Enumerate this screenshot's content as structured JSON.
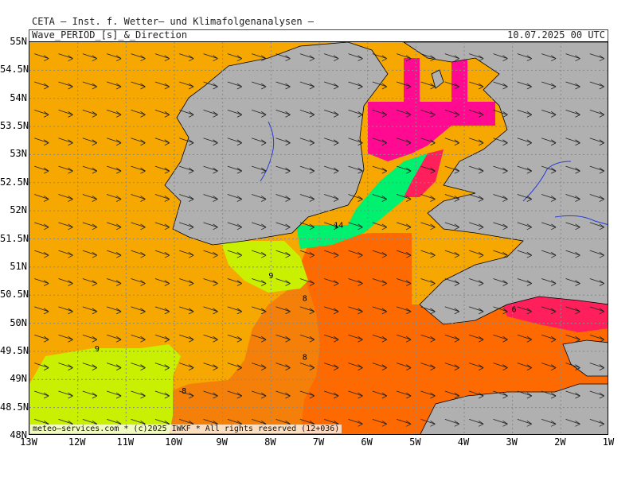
{
  "header": {
    "organization": "CETA – Inst. f. Wetter– und Klimafolgenanalysen –",
    "field": "Wave_PERIOD_[s]_&_Direction",
    "valid_time": "10.07.2025 00 UTC"
  },
  "axes": {
    "lat_labels": [
      "55N",
      "54.5N",
      "54N",
      "53.5N",
      "53N",
      "52.5N",
      "52N",
      "51.5N",
      "51N",
      "50.5N",
      "50N",
      "49.5N",
      "49N",
      "48.5N",
      "48N"
    ],
    "lon_labels": [
      "13W",
      "12W",
      "11W",
      "10W",
      "9W",
      "8W",
      "7W",
      "6W",
      "5W",
      "4W",
      "3W",
      "2W",
      "1W"
    ]
  },
  "contour_labels": [
    {
      "text": "9",
      "lon": -11.6,
      "lat": 49.5
    },
    {
      "text": "9",
      "lon": -8.0,
      "lat": 50.8
    },
    {
      "text": "8",
      "lon": -7.3,
      "lat": 50.4
    },
    {
      "text": "8",
      "lon": -7.3,
      "lat": 49.35
    },
    {
      "text": "8",
      "lon": -9.8,
      "lat": 48.75
    },
    {
      "text": "14",
      "lon": -6.6,
      "lat": 51.7
    },
    {
      "text": "6",
      "lon": -2.97,
      "lat": 50.2
    }
  ],
  "colors": {
    "land": "#b0b0b0",
    "period_10": "#f7a800",
    "period_9": "#c8f000",
    "period_8": "#f4800a",
    "period_7": "#ff6a00",
    "period_5_6": "#ff1f5a",
    "period_3_4": "#ff0a90",
    "period_short_green": "#00f070"
  },
  "footer": "meteo–services.com * (c)2025 IWKF * All rights reserved (12+036)"
}
